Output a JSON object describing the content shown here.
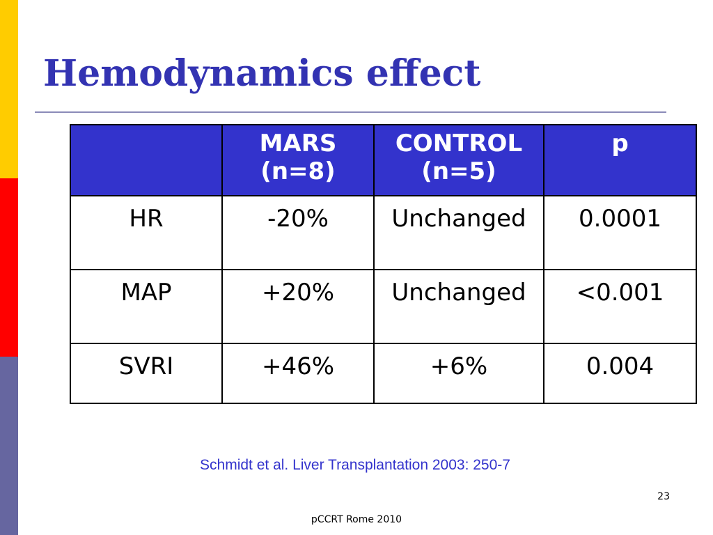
{
  "slide": {
    "title": "Hemodynamics effect",
    "citation": "Schmidt et al. Liver Transplantation 2003: 250-7",
    "page_number": "23",
    "footer": "pCCRT Rome 2010"
  },
  "colors": {
    "title": "#3333b2",
    "header_bg": "#3333cc",
    "citation": "#3333cc",
    "side_bar": [
      "#ffcc00",
      "#ff0000",
      "#6666a0"
    ]
  },
  "table": {
    "headers": [
      {
        "line1": "",
        "line2": ""
      },
      {
        "line1": "MARS",
        "line2": "(n=8)"
      },
      {
        "line1": "CONTROL",
        "line2": "(n=5)"
      },
      {
        "line1": "p",
        "line2": ""
      }
    ],
    "rows": [
      [
        "HR",
        "-20%",
        "Unchanged",
        "0.0001"
      ],
      [
        "MAP",
        "+20%",
        "Unchanged",
        "<0.001"
      ],
      [
        "SVRI",
        "+46%",
        "+6%",
        "0.004"
      ]
    ]
  }
}
